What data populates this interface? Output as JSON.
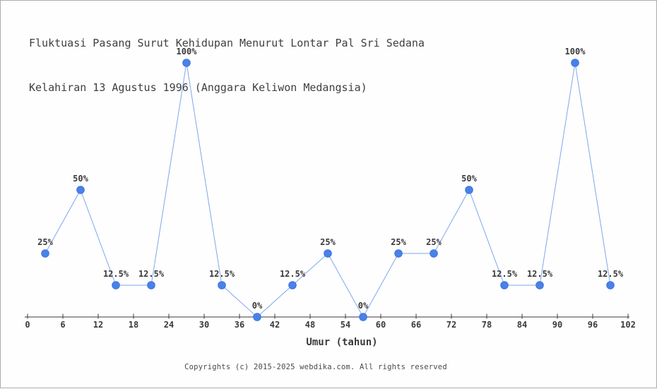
{
  "title": {
    "line1": "Fluktuasi Pasang Surut Kehidupan Menurut Lontar Pal Sri Sedana",
    "line2": "Kelahiran 13 Agustus 1996 (Anggara Keliwon Medangsia)"
  },
  "footer": {
    "text": "Copyrights (c) 2015-2025 webdika.com. All rights reserved"
  },
  "colors": {
    "marker": "#4a81e8",
    "marker_stroke": "#3d74e0",
    "line": "#7fa6ef",
    "axis": "#3a3a3a",
    "label_text": "#3a3a3a",
    "background": "#fefefe",
    "border": "#acacac"
  },
  "chart_data": {
    "type": "line",
    "title": "Fluktuasi Pasang Surut Kehidupan Menurut Lontar Pal Sri Sedana Kelahiran 13 Agustus 1996 (Anggara Keliwon Medangsia)",
    "xlabel": "Umur (tahun)",
    "ylabel": "",
    "x": [
      3,
      9,
      15,
      21,
      27,
      33,
      39,
      45,
      51,
      57,
      63,
      69,
      75,
      81,
      87,
      93,
      99
    ],
    "values": [
      25,
      50,
      12.5,
      12.5,
      100,
      12.5,
      0,
      12.5,
      25,
      0,
      25,
      25,
      50,
      12.5,
      12.5,
      100,
      12.5
    ],
    "point_labels": [
      "25%",
      "50%",
      "12.5%",
      "12.5%",
      "100%",
      "12.5%",
      "0%",
      "12.5%",
      "25%",
      "0%",
      "25%",
      "25%",
      "50%",
      "12.5%",
      "12.5%",
      "100%",
      "12.5%"
    ],
    "x_ticks": [
      0,
      6,
      12,
      18,
      24,
      30,
      36,
      42,
      48,
      54,
      60,
      66,
      72,
      78,
      84,
      90,
      96,
      102
    ],
    "xlim": [
      0,
      102
    ],
    "ylim": [
      0,
      100
    ],
    "grid": false,
    "legend": "none",
    "marker_shape": "circle"
  }
}
